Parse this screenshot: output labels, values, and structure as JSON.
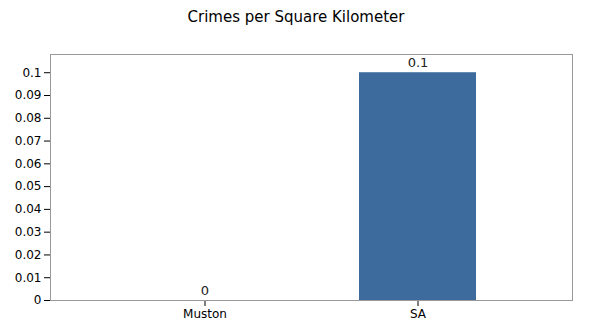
{
  "chart_data": {
    "type": "bar",
    "title": "Crimes per Square Kilometer",
    "categories": [
      "Muston",
      "SA"
    ],
    "values": [
      0.0,
      0.1
    ],
    "color": "#3d6b9e",
    "ylim": [
      0,
      0.108
    ],
    "yticks": [
      0,
      0.01,
      0.02,
      0.03,
      0.04,
      0.05,
      0.06,
      0.07,
      0.08,
      0.09,
      0.1
    ],
    "grid": false,
    "data_labels": true
  }
}
